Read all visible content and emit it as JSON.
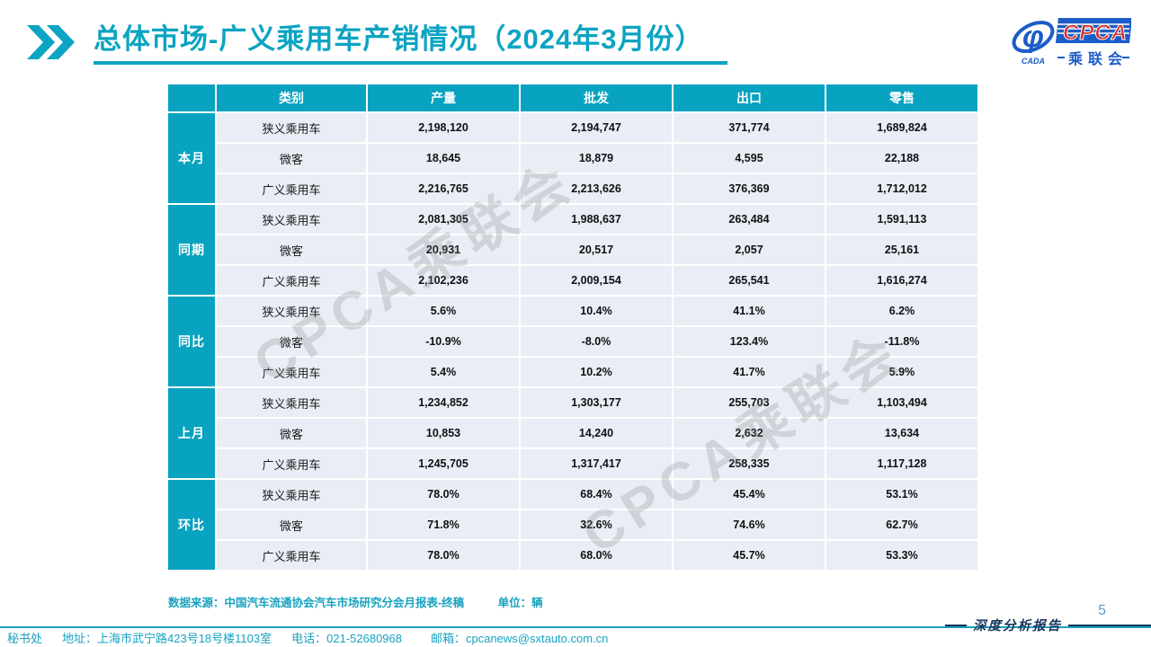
{
  "header": {
    "title": "总体市场-广义乘用车产销情况（2024年3月份）",
    "logo": {
      "acronym": "CPCA",
      "name_cn": "乘联会",
      "association_small": "CADA",
      "phi_symbol": "φ",
      "red": "#d42b26",
      "blue": "#1b5cc8"
    }
  },
  "colors": {
    "accent_teal": "#07a3c0",
    "row_background": "#e9edf5",
    "note_teal": "#18a2c0",
    "navy": "#17365d",
    "page_number_blue": "#5b9bd5"
  },
  "table": {
    "headers": [
      "类别",
      "产量",
      "批发",
      "出口",
      "零售"
    ],
    "groups": [
      {
        "label": "本月",
        "rows": [
          [
            "狭义乘用车",
            "2,198,120",
            "2,194,747",
            "371,774",
            "1,689,824"
          ],
          [
            "微客",
            "18,645",
            "18,879",
            "4,595",
            "22,188"
          ],
          [
            "广义乘用车",
            "2,216,765",
            "2,213,626",
            "376,369",
            "1,712,012"
          ]
        ]
      },
      {
        "label": "同期",
        "rows": [
          [
            "狭义乘用车",
            "2,081,305",
            "1,988,637",
            "263,484",
            "1,591,113"
          ],
          [
            "微客",
            "20,931",
            "20,517",
            "2,057",
            "25,161"
          ],
          [
            "广义乘用车",
            "2,102,236",
            "2,009,154",
            "265,541",
            "1,616,274"
          ]
        ]
      },
      {
        "label": "同比",
        "rows": [
          [
            "狭义乘用车",
            "5.6%",
            "10.4%",
            "41.1%",
            "6.2%"
          ],
          [
            "微客",
            "-10.9%",
            "-8.0%",
            "123.4%",
            "-11.8%"
          ],
          [
            "广义乘用车",
            "5.4%",
            "10.2%",
            "41.7%",
            "5.9%"
          ]
        ]
      },
      {
        "label": "上月",
        "rows": [
          [
            "狭义乘用车",
            "1,234,852",
            "1,303,177",
            "255,703",
            "1,103,494"
          ],
          [
            "微客",
            "10,853",
            "14,240",
            "2,632",
            "13,634"
          ],
          [
            "广义乘用车",
            "1,245,705",
            "1,317,417",
            "258,335",
            "1,117,128"
          ]
        ]
      },
      {
        "label": "环比",
        "rows": [
          [
            "狭义乘用车",
            "78.0%",
            "68.4%",
            "45.4%",
            "53.1%"
          ],
          [
            "微客",
            "71.8%",
            "32.6%",
            "74.6%",
            "62.7%"
          ],
          [
            "广义乘用车",
            "78.0%",
            "68.0%",
            "45.7%",
            "53.3%"
          ]
        ]
      }
    ]
  },
  "notes": {
    "source": "数据来源：中国汽车流通协会汽车市场研究分会月报表-终稿",
    "unit": "单位：辆"
  },
  "watermark": {
    "text": "CPCA乘联会"
  },
  "footer": {
    "secretariat": "秘书处",
    "address": "地址：上海市武宁路423号18号楼1103室",
    "phone": "电话：021-52680968",
    "email": "邮箱：cpcanews@sxtauto.com.cn",
    "report_label": "深度分析报告",
    "page_number": "5"
  }
}
